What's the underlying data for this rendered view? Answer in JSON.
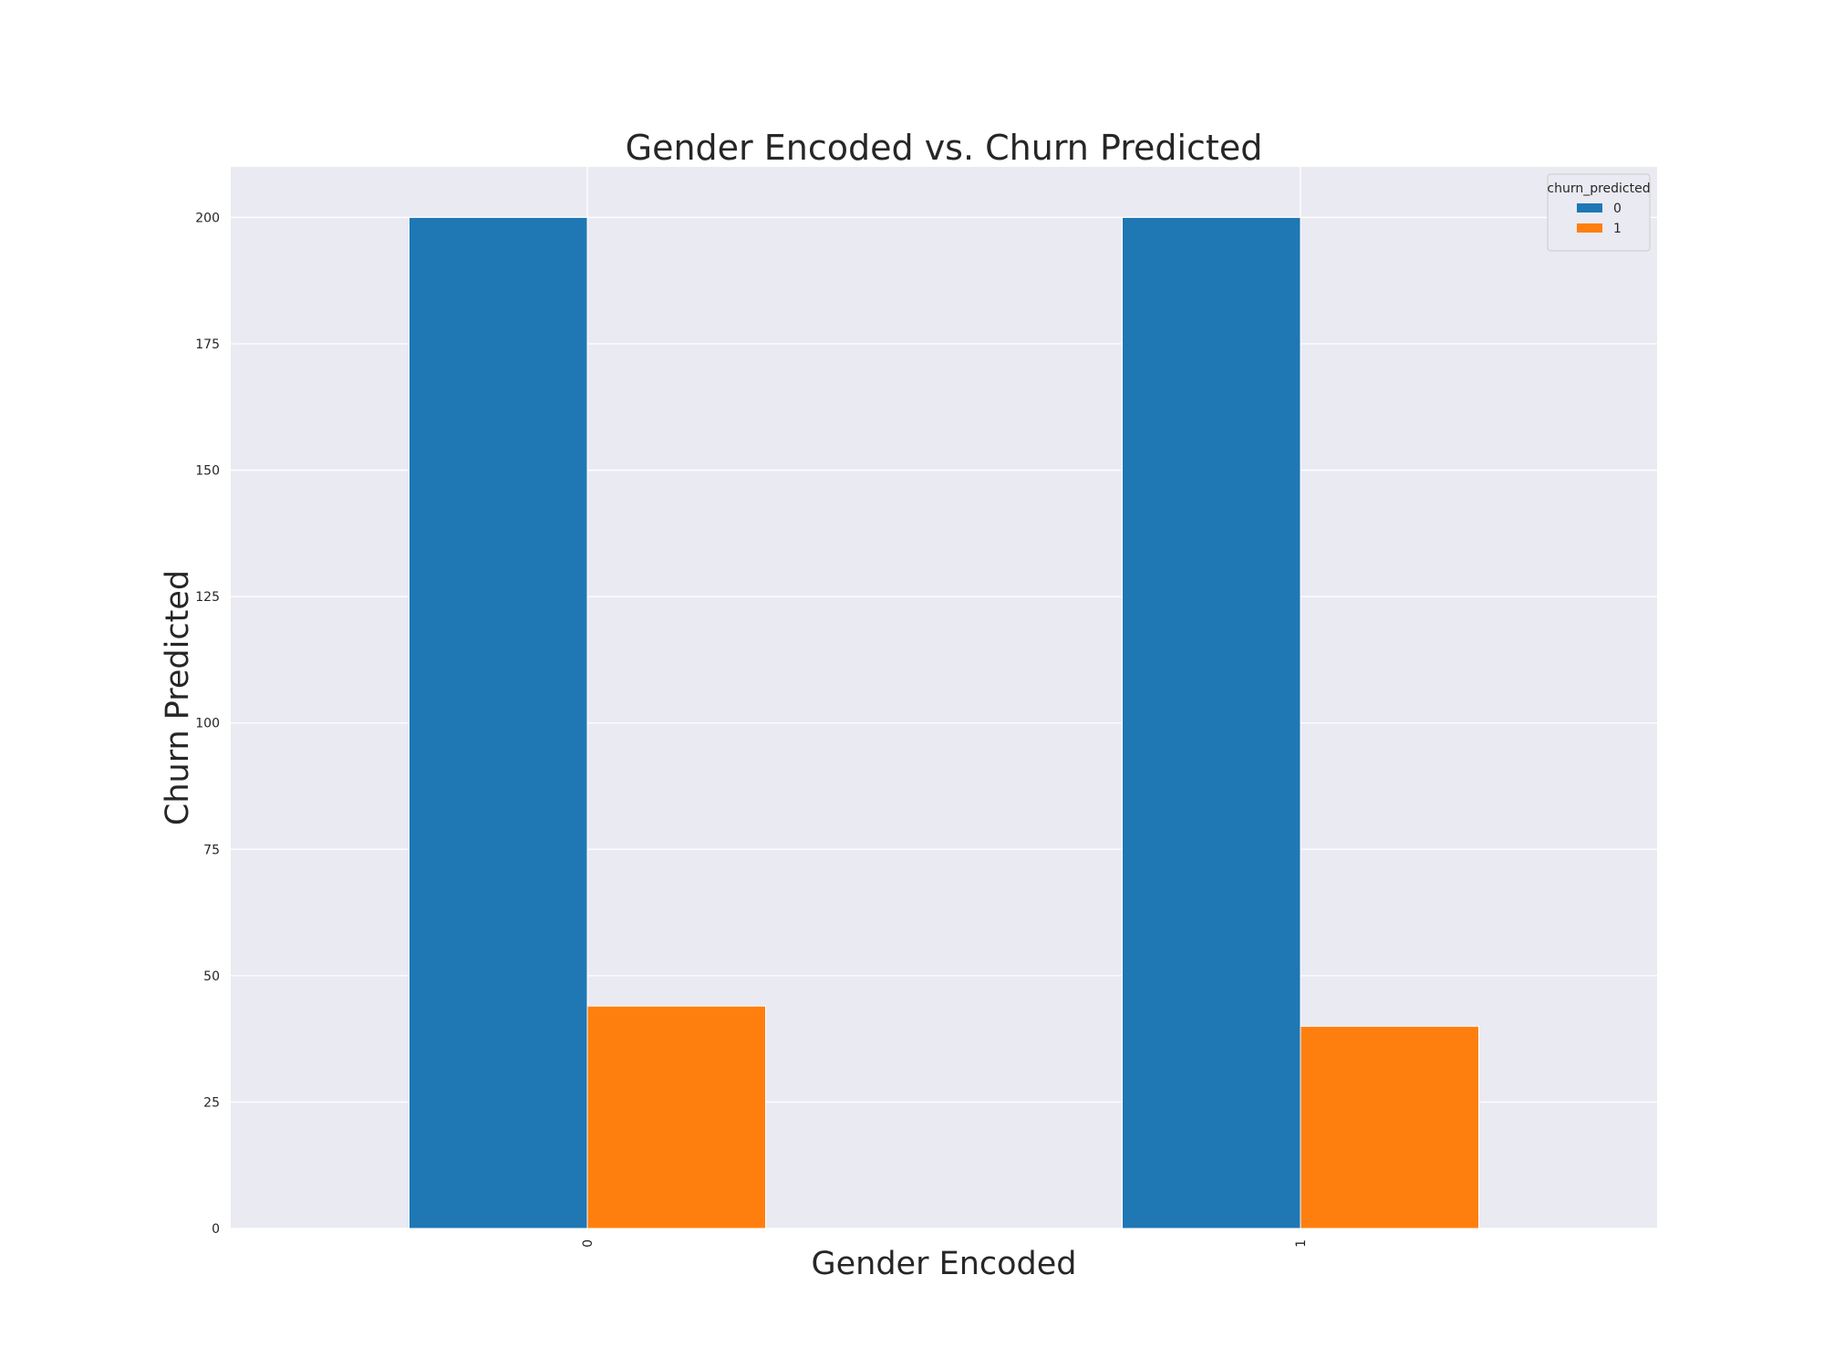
{
  "chart_data": {
    "type": "bar",
    "title": "Gender Encoded vs. Churn Predicted",
    "xlabel": "Gender Encoded",
    "ylabel": "Churn Predicted",
    "categories": [
      "0",
      "1"
    ],
    "series": [
      {
        "name": "0",
        "values": [
          200,
          200
        ],
        "color": "#1f77b4"
      },
      {
        "name": "1",
        "values": [
          44,
          40
        ],
        "color": "#ff7f0e"
      }
    ],
    "ylim": [
      0,
      210
    ],
    "yticks": [
      0,
      25,
      50,
      75,
      100,
      125,
      150,
      175,
      200
    ],
    "ytick_labels": [
      "0",
      "25",
      "50",
      "75",
      "100",
      "125",
      "150",
      "175",
      "200"
    ],
    "legend": {
      "title": "churn_predicted",
      "placement": "top-right"
    },
    "grid": true,
    "background_color": "#eaeaf2",
    "grid_color": "#ffffff",
    "xtick_rotation": 90
  }
}
